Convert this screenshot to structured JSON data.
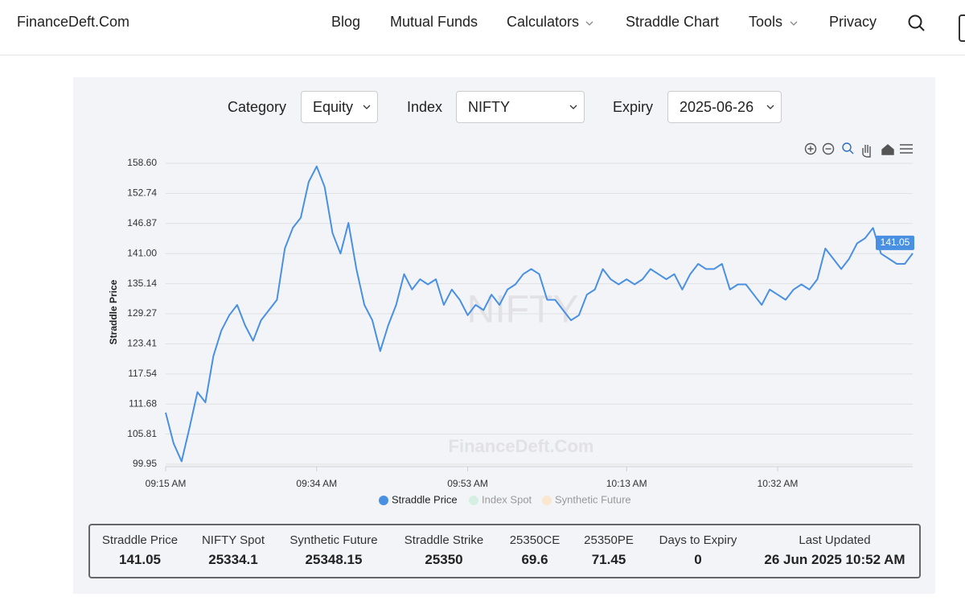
{
  "header": {
    "brand": "FinanceDeft.Com",
    "nav": [
      "Blog",
      "Mutual Funds",
      "Calculators",
      "Straddle Chart",
      "Tools",
      "Privacy"
    ]
  },
  "filters": [
    {
      "label": "Category",
      "value": "Equity"
    },
    {
      "label": "Index",
      "value": "NIFTY"
    },
    {
      "label": "Expiry",
      "value": "2025-06-26"
    }
  ],
  "chart_data": {
    "type": "line",
    "y_label": "Straddle Price",
    "watermarks": [
      "NIFTY",
      "FinanceDeft.Com"
    ],
    "categories": [
      "09:15 AM",
      null,
      null,
      null,
      null,
      null,
      null,
      null,
      null,
      null,
      null,
      null,
      null,
      null,
      null,
      null,
      null,
      null,
      null,
      "09:34 AM",
      null,
      null,
      null,
      null,
      null,
      null,
      null,
      null,
      null,
      null,
      null,
      null,
      null,
      null,
      null,
      null,
      null,
      null,
      "09:53 AM",
      null,
      null,
      null,
      null,
      null,
      null,
      null,
      null,
      null,
      null,
      null,
      null,
      null,
      null,
      null,
      null,
      null,
      null,
      null,
      "10:13 AM",
      null,
      null,
      null,
      null,
      null,
      null,
      null,
      null,
      null,
      null,
      null,
      null,
      null,
      null,
      null,
      null,
      null,
      null,
      "10:32 AM",
      null,
      null,
      null,
      null,
      null,
      null,
      null,
      null,
      null,
      null,
      null,
      null,
      null,
      null,
      null,
      null,
      null
    ],
    "series": [
      {
        "name": "Straddle Price",
        "color": "#4a90e2",
        "values": [
          110,
          104,
          100.5,
          107,
          114,
          112,
          121,
          126,
          129,
          131,
          127,
          124,
          128,
          130,
          132,
          142,
          146,
          148,
          155,
          158,
          154,
          145,
          141,
          147,
          138,
          131,
          128,
          122,
          127,
          131,
          137,
          134,
          136,
          135,
          136,
          131,
          134,
          132,
          129,
          131,
          130,
          133,
          131,
          134,
          135,
          137,
          138,
          137,
          132,
          132,
          130,
          128,
          129,
          133,
          134,
          138,
          136,
          135,
          136,
          135,
          136,
          138,
          137,
          136,
          137,
          134,
          137,
          139,
          138,
          138,
          139,
          134,
          135,
          135,
          133,
          131,
          134,
          133,
          132,
          134,
          135,
          134,
          136,
          142,
          140,
          138,
          140,
          143,
          144,
          146,
          141,
          140,
          139,
          139,
          141.05
        ]
      }
    ],
    "other_series": [
      {
        "name": "Index Spot",
        "color": "#d5efe3"
      },
      {
        "name": "Synthetic Future",
        "color": "#fbe6cf"
      }
    ],
    "ylim": [
      99.95,
      158.6
    ],
    "yticks": [
      99.95,
      105.81,
      111.68,
      117.54,
      123.41,
      129.27,
      135.14,
      {
        "value": 141,
        "label": "141.00"
      },
      146.87,
      152.74,
      {
        "value": 158.6,
        "label": "158.60"
      }
    ],
    "grid": true
  },
  "stats": [
    {
      "label": "Straddle Price",
      "value": 141.05
    },
    {
      "label": "NIFTY Spot",
      "value": 25334.1
    },
    {
      "label": "Synthetic Future",
      "value": 25348.15
    },
    {
      "label": "Straddle Strike",
      "value": 25350
    },
    {
      "label": "25350CE",
      "value": 69.6
    },
    {
      "label": "25350PE",
      "value": 71.45
    },
    {
      "label": "Days to Expiry",
      "value": 0
    },
    {
      "label": "Last Updated",
      "value": "26 Jun 2025 10:52 AM"
    }
  ]
}
